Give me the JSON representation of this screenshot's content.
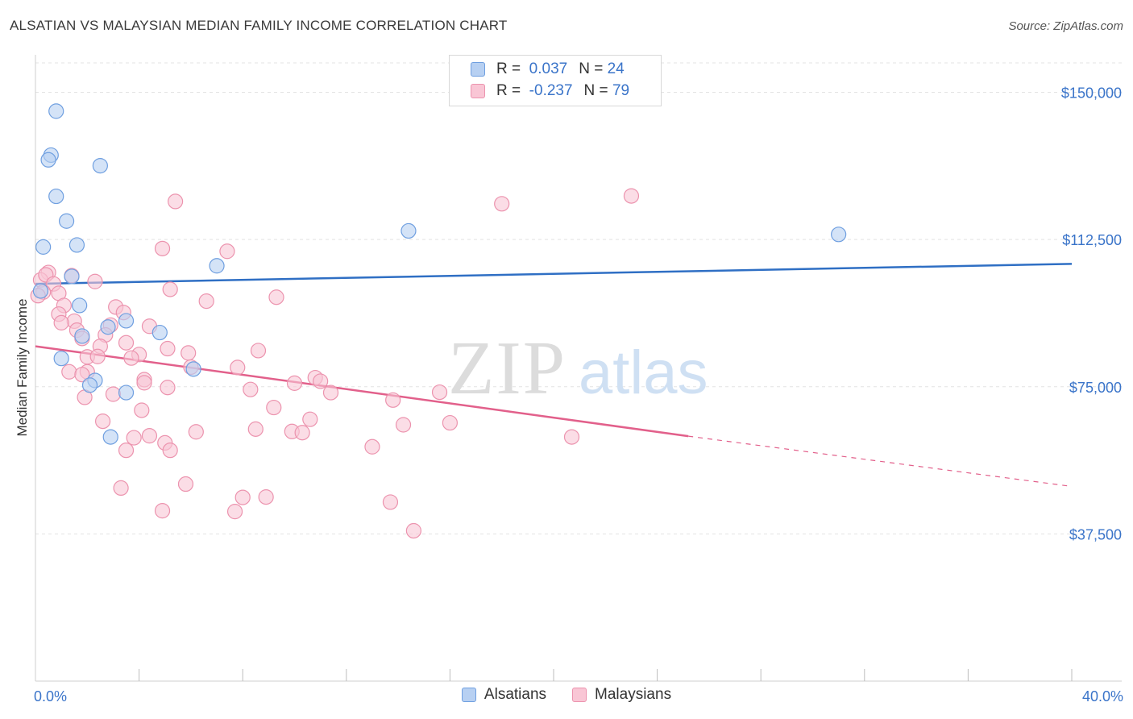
{
  "header": {
    "title": "ALSATIAN VS MALAYSIAN MEDIAN FAMILY INCOME CORRELATION CHART",
    "source": "Source: ZipAtlas.com"
  },
  "watermark": {
    "zip": "ZIP",
    "atlas": "atlas"
  },
  "legend": {
    "rows": [
      {
        "r_label": "R =",
        "r_value": "0.037",
        "n_label": "N =",
        "n_value": "24"
      },
      {
        "r_label": "R =",
        "r_value": "-0.237",
        "n_label": "N =",
        "n_value": "79"
      }
    ]
  },
  "colors": {
    "alsatians_fill": "#b7d0f2",
    "alsatians_stroke": "#6f9fe0",
    "alsatians_line": "#2f6fc4",
    "malaysians_fill": "#f9c6d5",
    "malaysians_stroke": "#ec93ae",
    "malaysians_line": "#e2608b",
    "tick_label": "#3a74c9",
    "grid": "#e3e3e3"
  },
  "chart_data": {
    "type": "scatter",
    "title": "ALSATIAN VS MALAYSIAN MEDIAN FAMILY INCOME CORRELATION CHART",
    "xlabel": "",
    "ylabel": "Median Family Income",
    "xlim": [
      0,
      40
    ],
    "ylim": [
      0,
      157500
    ],
    "x_tick_labels": [
      "0.0%",
      "40.0%"
    ],
    "x_minor_ticks": [
      4,
      8,
      12,
      16,
      20,
      24,
      28,
      32,
      36,
      40
    ],
    "y_ticks": [
      37500,
      75000,
      112500,
      150000
    ],
    "y_tick_labels": [
      "$37,500",
      "$75,000",
      "$112,500",
      "$150,000"
    ],
    "grid": true,
    "legend_position": "top-center",
    "series": [
      {
        "name": "Alsatians",
        "r": 0.037,
        "n": 24,
        "points": [
          [
            0.8,
            145200
          ],
          [
            0.6,
            134000
          ],
          [
            0.5,
            132800
          ],
          [
            2.5,
            131300
          ],
          [
            0.8,
            123500
          ],
          [
            1.2,
            117200
          ],
          [
            0.3,
            110600
          ],
          [
            1.6,
            111100
          ],
          [
            14.4,
            114700
          ],
          [
            31.0,
            113800
          ],
          [
            7.0,
            105800
          ],
          [
            1.4,
            103100
          ],
          [
            0.2,
            99400
          ],
          [
            1.7,
            95700
          ],
          [
            3.5,
            91800
          ],
          [
            2.8,
            90200
          ],
          [
            4.8,
            88800
          ],
          [
            1.8,
            87900
          ],
          [
            1.0,
            82200
          ],
          [
            6.1,
            79500
          ],
          [
            2.3,
            76600
          ],
          [
            2.1,
            75400
          ],
          [
            3.5,
            73500
          ],
          [
            2.9,
            62200
          ]
        ],
        "trend": {
          "x0": 0,
          "y0": 101200,
          "x1": 40,
          "y1": 106300
        }
      },
      {
        "name": "Malaysians",
        "r": -0.237,
        "n": 79,
        "points": [
          [
            5.4,
            122200
          ],
          [
            18.0,
            121600
          ],
          [
            23.0,
            123600
          ],
          [
            4.9,
            110200
          ],
          [
            7.4,
            109500
          ],
          [
            1.4,
            103300
          ],
          [
            0.5,
            104100
          ],
          [
            0.2,
            102200
          ],
          [
            0.4,
            103500
          ],
          [
            0.7,
            101200
          ],
          [
            2.3,
            101800
          ],
          [
            0.3,
            99100
          ],
          [
            0.9,
            98800
          ],
          [
            5.2,
            99800
          ],
          [
            6.6,
            96800
          ],
          [
            9.3,
            97800
          ],
          [
            1.1,
            95700
          ],
          [
            3.1,
            95300
          ],
          [
            3.4,
            93900
          ],
          [
            0.9,
            93500
          ],
          [
            1.5,
            91700
          ],
          [
            1.0,
            91300
          ],
          [
            2.9,
            90700
          ],
          [
            4.4,
            90400
          ],
          [
            1.6,
            89400
          ],
          [
            2.7,
            88200
          ],
          [
            1.8,
            87300
          ],
          [
            3.5,
            86200
          ],
          [
            2.5,
            85300
          ],
          [
            5.1,
            84700
          ],
          [
            8.6,
            84200
          ],
          [
            4.0,
            83200
          ],
          [
            5.9,
            83600
          ],
          [
            2.0,
            82600
          ],
          [
            3.7,
            82300
          ],
          [
            2.4,
            82700
          ],
          [
            7.8,
            79900
          ],
          [
            6.0,
            80000
          ],
          [
            1.3,
            78800
          ],
          [
            2.0,
            78800
          ],
          [
            1.8,
            78100
          ],
          [
            10.8,
            77300
          ],
          [
            4.2,
            76800
          ],
          [
            11.0,
            76400
          ],
          [
            4.2,
            76000
          ],
          [
            10.0,
            75900
          ],
          [
            5.1,
            74800
          ],
          [
            8.3,
            74300
          ],
          [
            11.4,
            73500
          ],
          [
            15.6,
            73600
          ],
          [
            3.0,
            73100
          ],
          [
            1.9,
            72300
          ],
          [
            13.8,
            71600
          ],
          [
            4.1,
            69000
          ],
          [
            9.2,
            69700
          ],
          [
            10.6,
            66700
          ],
          [
            2.6,
            66200
          ],
          [
            16.0,
            65800
          ],
          [
            14.2,
            65300
          ],
          [
            8.5,
            64200
          ],
          [
            6.2,
            63500
          ],
          [
            9.9,
            63600
          ],
          [
            10.3,
            63300
          ],
          [
            4.4,
            62500
          ],
          [
            3.8,
            62000
          ],
          [
            20.7,
            62200
          ],
          [
            5.0,
            60700
          ],
          [
            13.0,
            59700
          ],
          [
            3.5,
            58800
          ],
          [
            5.2,
            58800
          ],
          [
            5.8,
            50200
          ],
          [
            3.3,
            49200
          ],
          [
            8.0,
            46800
          ],
          [
            8.9,
            46900
          ],
          [
            13.7,
            45600
          ],
          [
            4.9,
            43400
          ],
          [
            7.7,
            43200
          ],
          [
            14.6,
            38300
          ],
          [
            0.1,
            98200
          ]
        ],
        "trend_solid": {
          "x0": 0,
          "y0": 85300,
          "x1": 25.2,
          "y1": 62400
        },
        "trend_dashed": {
          "x0": 25.2,
          "y0": 62400,
          "x1": 40,
          "y1": 49600
        }
      }
    ]
  }
}
